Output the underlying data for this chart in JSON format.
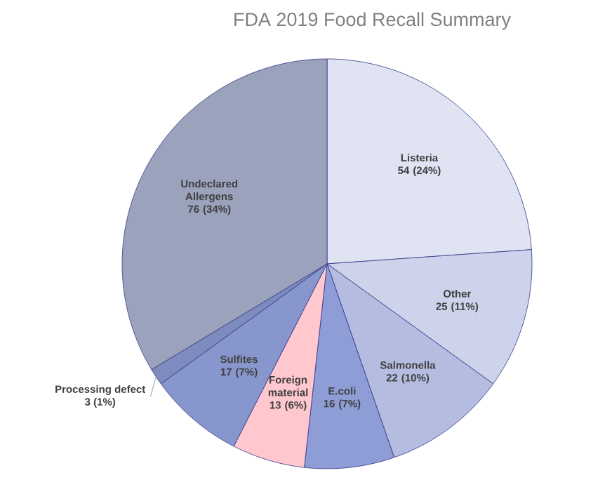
{
  "chart_data": {
    "type": "pie",
    "title": "FDA 2019 Food Recall Summary",
    "categories": [
      "Listeria",
      "Other",
      "Salmonella",
      "E.coli",
      "Foreign material",
      "Sulfites",
      "Processing defect",
      "Undeclared Allergens"
    ],
    "values": [
      54,
      25,
      22,
      16,
      13,
      17,
      3,
      76
    ],
    "colors": [
      "#dfe3f2",
      "#cdd3ea",
      "#b4bde0",
      "#8e9dd6",
      "#ffc7ce",
      "#8796cc",
      "#7d8bbf",
      "#9aa2bc"
    ],
    "value_labels": [
      "54 (24%)",
      "25 (11%)",
      "22 (10%)",
      "16 (7%)",
      "13 (6%)",
      "17 (7%)",
      "3 (1%)",
      "76 (34%)"
    ]
  }
}
